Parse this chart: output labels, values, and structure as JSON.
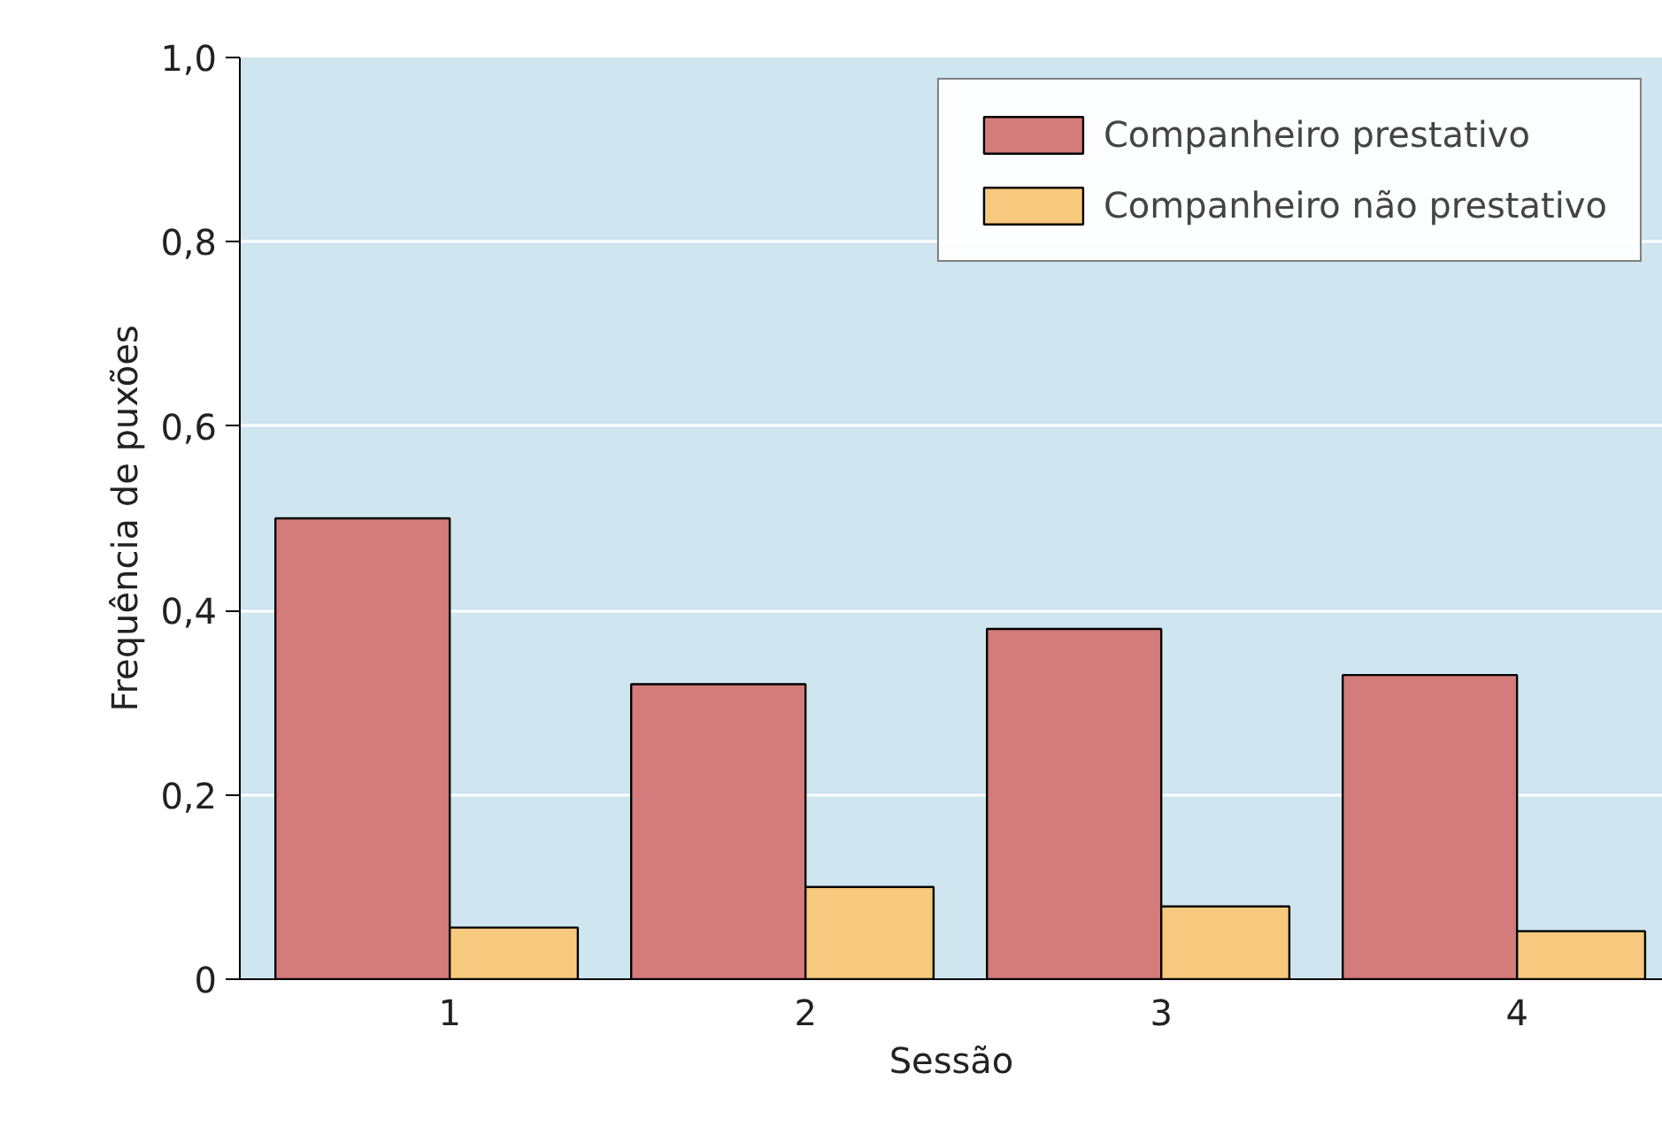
{
  "chart_data": {
    "type": "bar",
    "xlabel": "Sessão",
    "ylabel": "Frequência de puxões",
    "categories": [
      "1",
      "2",
      "3",
      "4"
    ],
    "series": [
      {
        "name": "Companheiro prestativo",
        "color": "#d47b7b",
        "values": [
          0.5,
          0.32,
          0.38,
          0.33
        ]
      },
      {
        "name": "Companheiro não prestativo",
        "color": "#f6c97e",
        "values": [
          0.056,
          0.1,
          0.079,
          0.052
        ]
      }
    ],
    "ylim": [
      0,
      1.0
    ],
    "yticks": [
      0,
      {
        "value": 0.2,
        "label": "0,2"
      },
      {
        "value": 0.4,
        "label": "0,4"
      },
      {
        "value": 0.6,
        "label": "0,6"
      },
      {
        "value": 0.8,
        "label": "0,8"
      },
      {
        "value": 1.0,
        "label": "1,0"
      }
    ],
    "grid": "y",
    "legend": "top right"
  }
}
